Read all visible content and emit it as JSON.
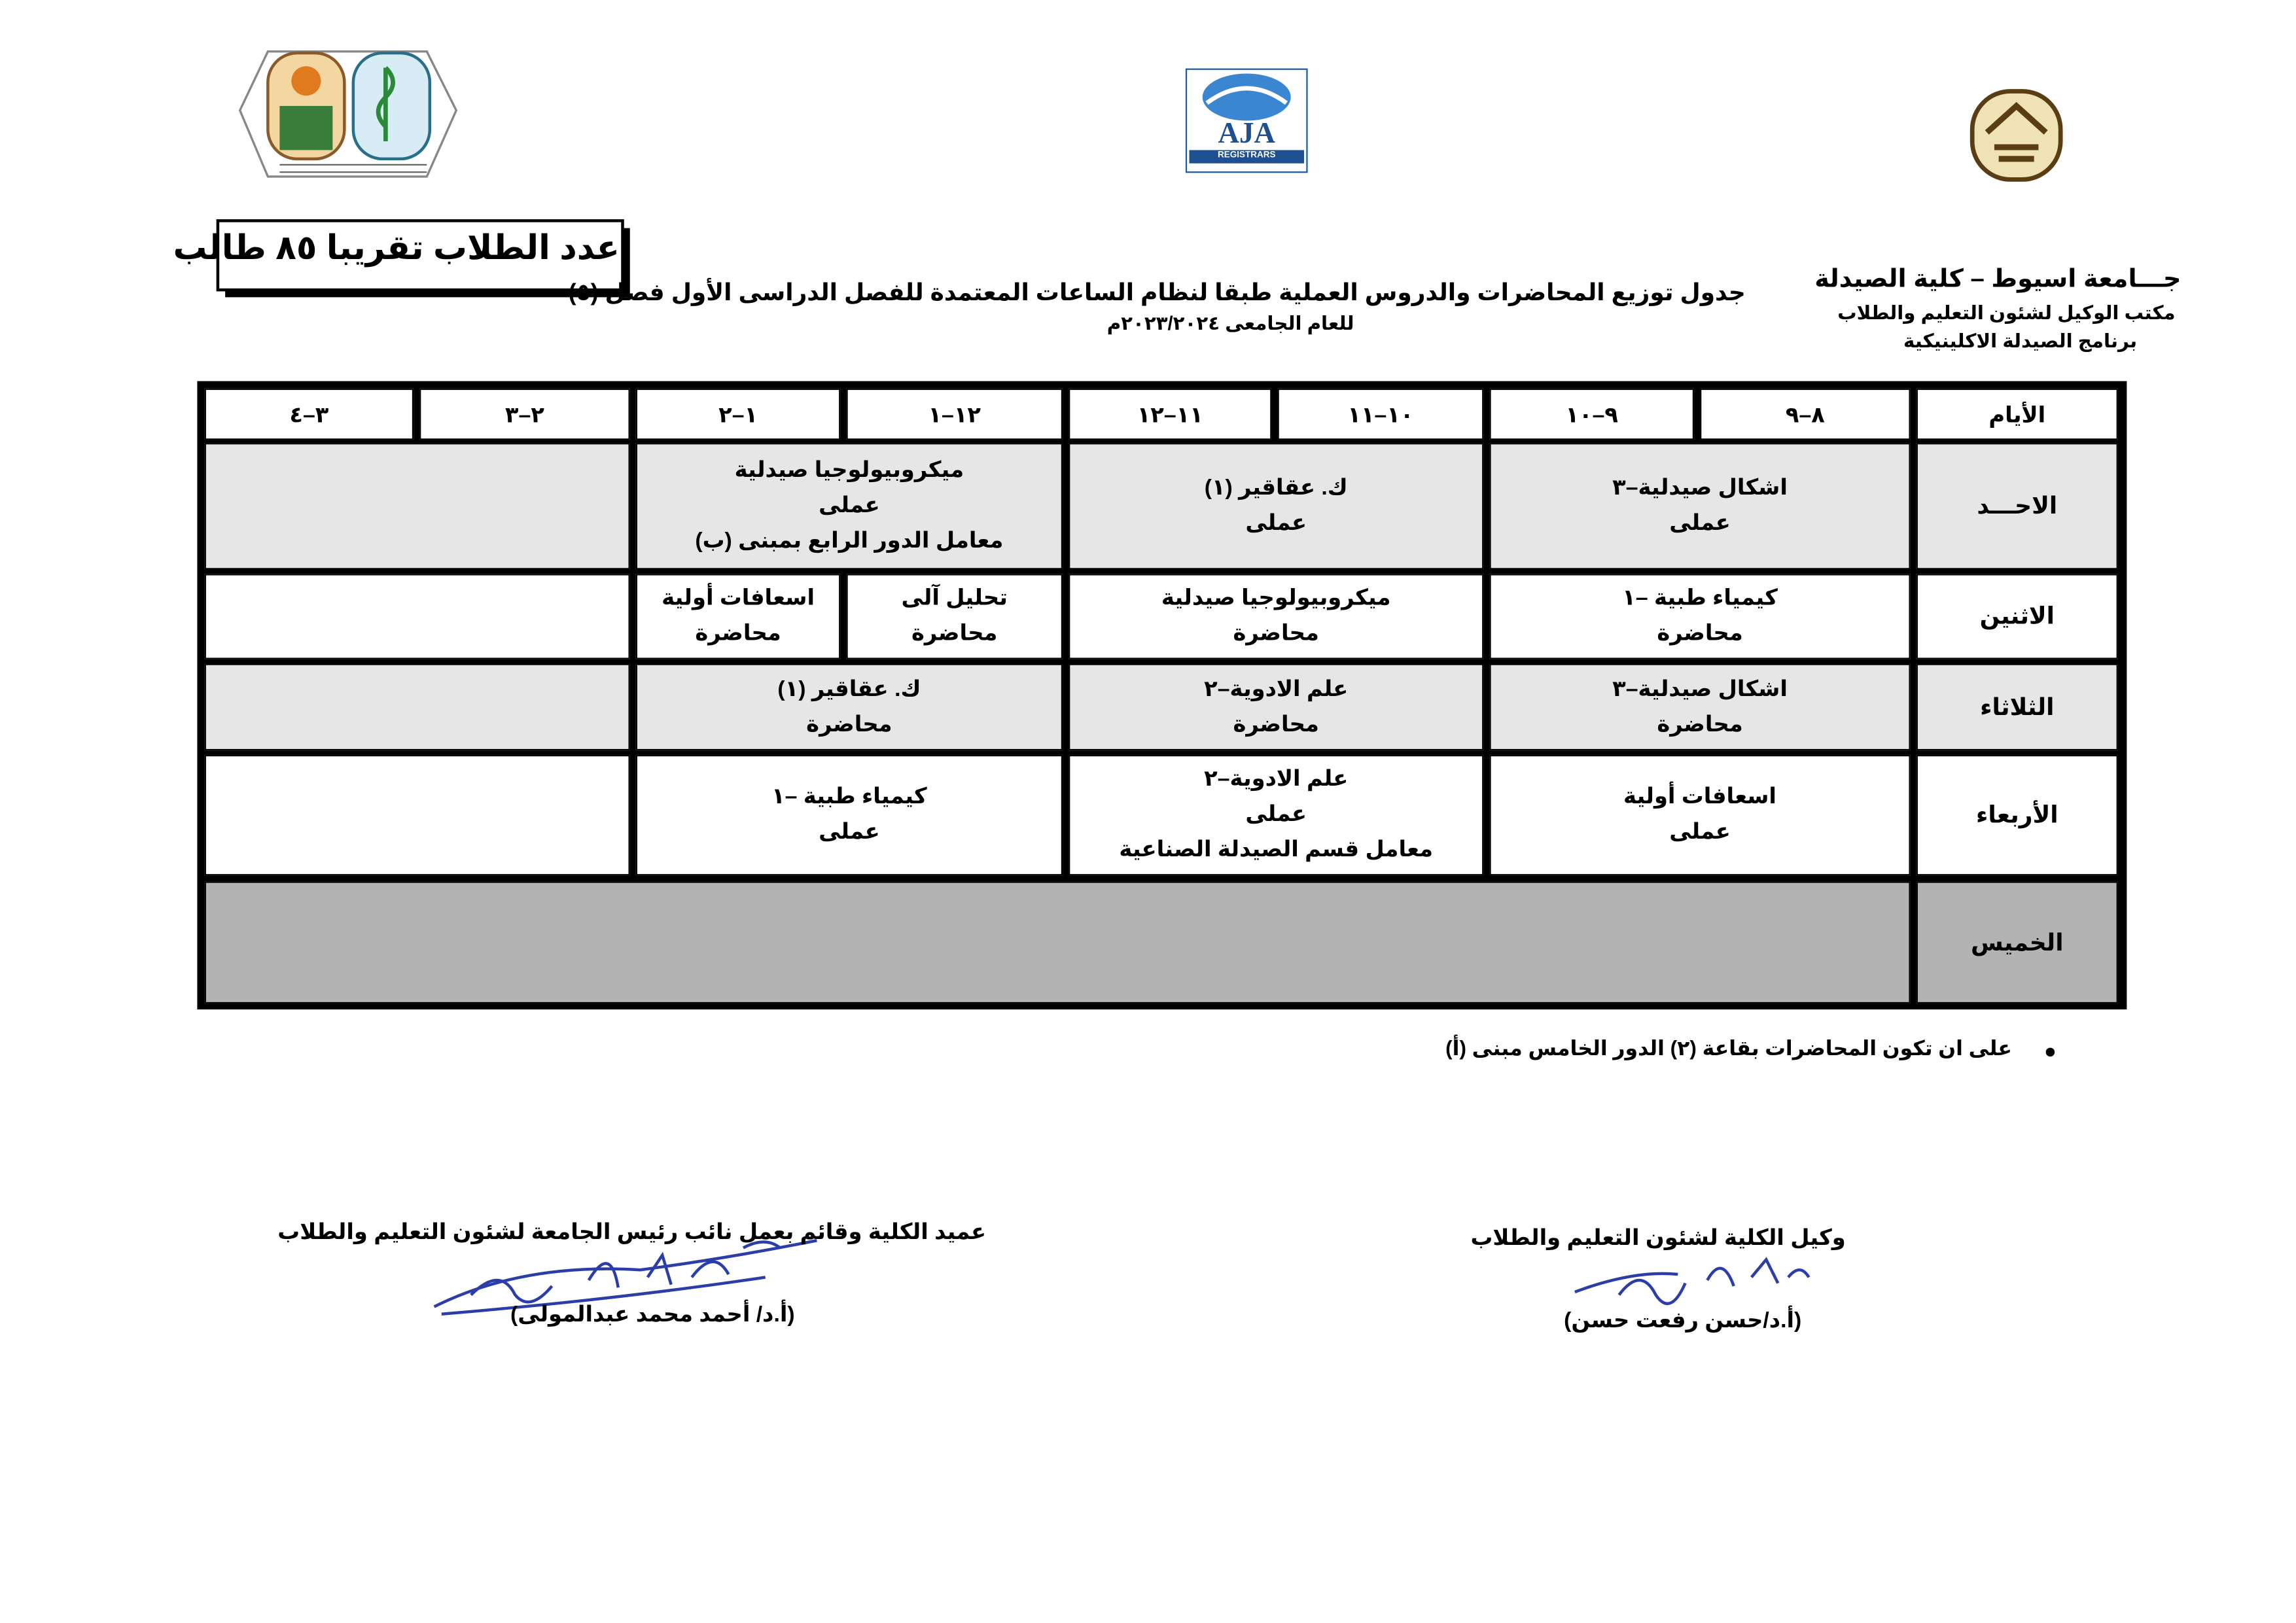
{
  "header": {
    "university": "جـــامعة اسيوط – كلية الصيدلة",
    "office": "مكتب الوكيل لشئون التعليم والطلاب",
    "program": "برنامج الصيدلة الاكلينيكية",
    "title": "جدول توزيع المحاضرات والدروس العملية طبقا لنظام الساعات المعتمدة للفصل الدراسى الأول فصل (٥)",
    "year": "للعام الجامعى ٢٠٢٣/٢٠٢٤م",
    "students": "عدد الطلاب تقريبا ٨٥ طالب",
    "logo_name": "AJA",
    "logo_sub": "REGISTRARS"
  },
  "table": {
    "headers": [
      "الأيام",
      "٨–٩",
      "٩–١٠",
      "١٠–١١",
      "١١–١٢",
      "١٢–١",
      "١–٢",
      "٢–٣",
      "٣–٤"
    ],
    "rows": [
      {
        "day": "الاحـــد",
        "cells": [
          [
            "اشكال صيدلية–٣",
            "عملى"
          ],
          [
            "ك. عقاقير (١)",
            "عملى"
          ],
          [
            "ميكروبيولوجيا صيدلية",
            "عملى",
            "معامل الدور الرابع بمبنى (ب)"
          ]
        ]
      },
      {
        "day": "الاثنين",
        "cells": [
          [
            "كيمياء طبية –١",
            "محاضرة"
          ],
          [
            "ميكروبيولوجيا صيدلية",
            "محاضرة"
          ],
          [
            "تحليل آلى",
            "محاضرة"
          ],
          [
            "اسعافات أولية",
            "محاضرة"
          ]
        ]
      },
      {
        "day": "الثلاثاء",
        "cells": [
          [
            "اشكال صيدلية–٣",
            "محاضرة"
          ],
          [
            "علم الادوية–٢",
            "محاضرة"
          ],
          [
            "ك.  عقاقير (١)",
            "محاضرة"
          ]
        ]
      },
      {
        "day": "الأربعاء",
        "cells": [
          [
            "اسعافات أولية",
            "عملى"
          ],
          [
            "علم الادوية–٢",
            "عملى",
            "معامل قسم الصيدلة الصناعية"
          ],
          [
            "كيمياء طبية –١",
            "عملى"
          ]
        ]
      },
      {
        "day": "الخميس",
        "cells": []
      }
    ]
  },
  "note": "على ان تكون المحاضرات بقاعة (٢) الدور الخامس مبنى (أ)",
  "signatures": [
    {
      "role": "عميد الكلية وقائم بعمل نائب رئيس الجامعة لشئون التعليم والطلاب",
      "name": "(أ.د/ أحمد محمد عبدالمولى)"
    },
    {
      "role": "وكيل الكلية لشئون التعليم والطلاب",
      "name": "(أ.د/حسن رفعت حسن)"
    }
  ]
}
